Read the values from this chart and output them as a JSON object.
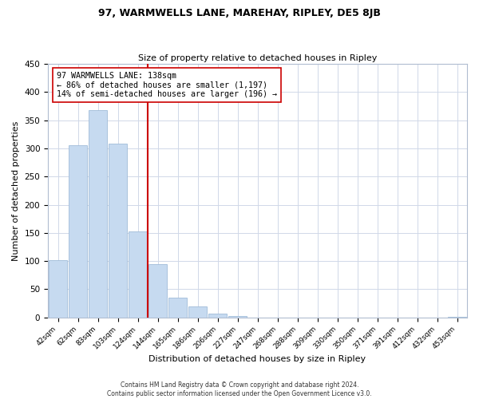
{
  "title": "97, WARMWELLS LANE, MAREHAY, RIPLEY, DE5 8JB",
  "subtitle": "Size of property relative to detached houses in Ripley",
  "xlabel": "Distribution of detached houses by size in Ripley",
  "ylabel": "Number of detached properties",
  "bar_labels": [
    "42sqm",
    "62sqm",
    "83sqm",
    "103sqm",
    "124sqm",
    "144sqm",
    "165sqm",
    "186sqm",
    "206sqm",
    "227sqm",
    "247sqm",
    "268sqm",
    "288sqm",
    "309sqm",
    "330sqm",
    "350sqm",
    "371sqm",
    "391sqm",
    "412sqm",
    "432sqm",
    "453sqm"
  ],
  "bar_values": [
    102,
    305,
    368,
    309,
    153,
    94,
    35,
    19,
    7,
    2,
    0,
    0,
    0,
    0,
    0,
    0,
    0,
    0,
    0,
    0,
    1
  ],
  "bar_color": "#c6daf0",
  "bar_edge_color": "#a0bcd8",
  "vline_x": 4.5,
  "vline_color": "#cc0000",
  "annotation_lines": [
    "97 WARMWELLS LANE: 138sqm",
    "← 86% of detached houses are smaller (1,197)",
    "14% of semi-detached houses are larger (196) →"
  ],
  "ylim": [
    0,
    450
  ],
  "yticks": [
    0,
    50,
    100,
    150,
    200,
    250,
    300,
    350,
    400,
    450
  ],
  "footer_lines": [
    "Contains HM Land Registry data © Crown copyright and database right 2024.",
    "Contains public sector information licensed under the Open Government Licence v3.0."
  ],
  "background_color": "#ffffff",
  "grid_color": "#d0d8e8"
}
